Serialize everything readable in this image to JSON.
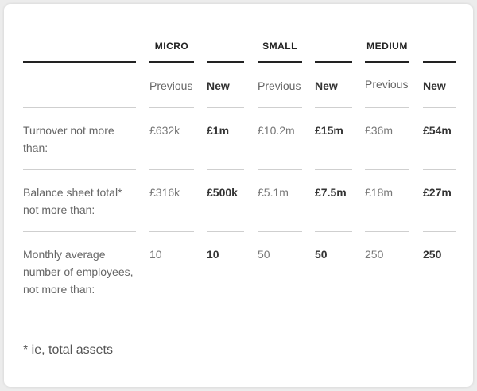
{
  "groups": [
    {
      "name": "MICRO",
      "prev_label": "Previous",
      "new_label": "New"
    },
    {
      "name": "SMALL",
      "prev_label": "Previous",
      "new_label": "New"
    },
    {
      "name": "MEDIUM",
      "prev_label": "Previous",
      "new_label": "New"
    }
  ],
  "rows": [
    {
      "label": "Turnover not more than:",
      "values": [
        "£632k",
        "£1m",
        "£10.2m",
        "£15m",
        "£36m",
        "£54m"
      ]
    },
    {
      "label": "Balance sheet total* not more than:",
      "values": [
        "£316k",
        "£500k",
        "£5.1m",
        "£7.5m",
        "£18m",
        "£27m"
      ]
    },
    {
      "label": "Monthly average number of employees, not more than:",
      "values": [
        "10",
        "10",
        "50",
        "50",
        "250",
        "250"
      ]
    }
  ],
  "footnote": "* ie, total assets"
}
